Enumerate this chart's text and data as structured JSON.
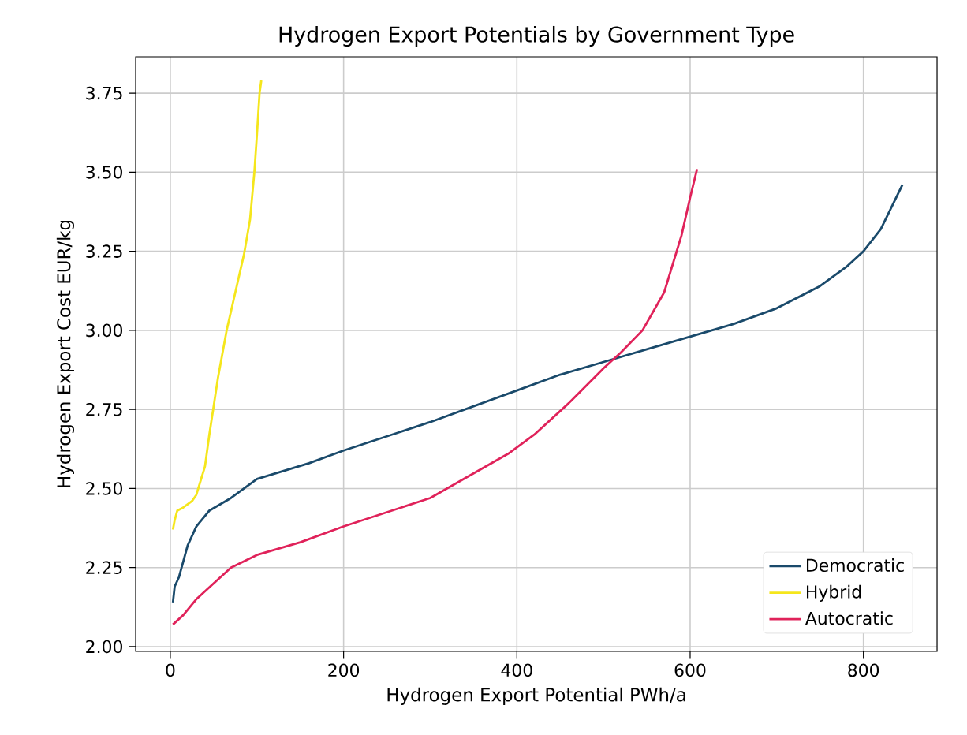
{
  "chart_data": {
    "type": "line",
    "title": "Hydrogen Export Potentials by Government Type",
    "xlabel": "Hydrogen Export Potential PWh/a",
    "ylabel": "Hydrogen Export Cost EUR/kg",
    "xlim": [
      -40,
      885
    ],
    "ylim": [
      1.985,
      3.865
    ],
    "xticks": [
      0,
      200,
      400,
      600,
      800
    ],
    "yticks": [
      {
        "value": 2.0,
        "label": "2.00"
      },
      {
        "value": 2.25,
        "label": "2.25"
      },
      {
        "value": 2.5,
        "label": "2.50"
      },
      {
        "value": 2.75,
        "label": "2.75"
      },
      {
        "value": 3.0,
        "label": "3.00"
      },
      {
        "value": 3.25,
        "label": "3.25"
      },
      {
        "value": 3.5,
        "label": "3.50"
      },
      {
        "value": 3.75,
        "label": "3.75"
      }
    ],
    "grid": true,
    "legend": "bottom right",
    "line_style": "solid",
    "marker": "none",
    "series": [
      {
        "name": "Democratic",
        "color": "#1a4a6b",
        "x": [
          3,
          5,
          10,
          20,
          30,
          45,
          70,
          100,
          160,
          200,
          300,
          350,
          400,
          450,
          500,
          550,
          600,
          650,
          700,
          750,
          780,
          800,
          820,
          845
        ],
        "values": [
          2.14,
          2.19,
          2.22,
          2.32,
          2.38,
          2.43,
          2.47,
          2.53,
          2.58,
          2.62,
          2.71,
          2.76,
          2.81,
          2.86,
          2.9,
          2.94,
          2.98,
          3.02,
          3.07,
          3.14,
          3.2,
          3.25,
          3.32,
          3.46
        ]
      },
      {
        "name": "Hybrid",
        "color": "#f5e61c",
        "x": [
          3,
          5,
          8,
          15,
          25,
          30,
          40,
          45,
          55,
          65,
          75,
          85,
          92,
          97,
          100,
          103,
          105
        ],
        "values": [
          2.37,
          2.4,
          2.43,
          2.44,
          2.46,
          2.48,
          2.57,
          2.67,
          2.85,
          3.0,
          3.12,
          3.24,
          3.35,
          3.5,
          3.62,
          3.75,
          3.79
        ]
      },
      {
        "name": "Autocratic",
        "color": "#e0225a",
        "x": [
          3,
          15,
          30,
          50,
          70,
          100,
          150,
          200,
          300,
          390,
          420,
          460,
          500,
          520,
          545,
          570,
          590,
          600,
          608
        ],
        "values": [
          2.07,
          2.1,
          2.15,
          2.2,
          2.25,
          2.29,
          2.33,
          2.38,
          2.47,
          2.61,
          2.67,
          2.77,
          2.88,
          2.93,
          3.0,
          3.12,
          3.3,
          3.42,
          3.51
        ]
      }
    ]
  }
}
